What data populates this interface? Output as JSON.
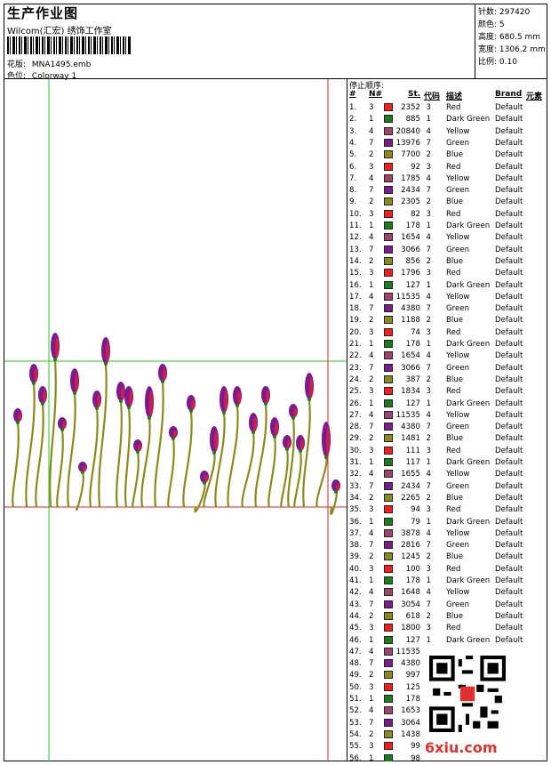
{
  "header": {
    "title": "生产作业图",
    "company": "Wilcom(汇宏) 绣饰工作室",
    "design_label": "花版:",
    "design_value": "MNA1495.emb",
    "colorway_label": "色位:",
    "colorway_value": "Colorway 1"
  },
  "stats": {
    "stitches": "针数: 297420",
    "colors": "颜色: 5",
    "height": "高度: 680.5 mm",
    "width": "宽度: 1306.2 mm",
    "scale": "比例: 0.10"
  },
  "panel": {
    "title": "停止顺序:",
    "col_index": "#",
    "col_n": "N#",
    "col_st": "St.",
    "col_code": "代码",
    "col_desc": "描述",
    "col_brand": "Brand",
    "col_elem": "元素"
  },
  "colors": {
    "1": "#1a7f1a",
    "2": "#8b8b1a",
    "3": "#ff1a1a",
    "4": "#a0446e",
    "7": "#7d1a8e"
  },
  "stops": [
    {
      "i": "1.",
      "n": "3",
      "st": "2352",
      "code": "3",
      "desc": "Red",
      "brand": "Default"
    },
    {
      "i": "2.",
      "n": "1",
      "st": "885",
      "code": "1",
      "desc": "Dark Green",
      "brand": "Default"
    },
    {
      "i": "3.",
      "n": "4",
      "st": "20840",
      "code": "4",
      "desc": "Yellow",
      "brand": "Default"
    },
    {
      "i": "4.",
      "n": "7",
      "st": "13976",
      "code": "7",
      "desc": "Green",
      "brand": "Default"
    },
    {
      "i": "5.",
      "n": "2",
      "st": "7700",
      "code": "2",
      "desc": "Blue",
      "brand": "Default"
    },
    {
      "i": "6.",
      "n": "3",
      "st": "92",
      "code": "3",
      "desc": "Red",
      "brand": "Default"
    },
    {
      "i": "7.",
      "n": "4",
      "st": "1785",
      "code": "4",
      "desc": "Yellow",
      "brand": "Default"
    },
    {
      "i": "8.",
      "n": "7",
      "st": "2434",
      "code": "7",
      "desc": "Green",
      "brand": "Default"
    },
    {
      "i": "9.",
      "n": "2",
      "st": "2305",
      "code": "2",
      "desc": "Blue",
      "brand": "Default"
    },
    {
      "i": "10.",
      "n": "3",
      "st": "82",
      "code": "3",
      "desc": "Red",
      "brand": "Default"
    },
    {
      "i": "11.",
      "n": "1",
      "st": "178",
      "code": "1",
      "desc": "Dark Green",
      "brand": "Default"
    },
    {
      "i": "12.",
      "n": "4",
      "st": "1654",
      "code": "4",
      "desc": "Yellow",
      "brand": "Default"
    },
    {
      "i": "13.",
      "n": "7",
      "st": "3066",
      "code": "7",
      "desc": "Green",
      "brand": "Default"
    },
    {
      "i": "14.",
      "n": "2",
      "st": "856",
      "code": "2",
      "desc": "Blue",
      "brand": "Default"
    },
    {
      "i": "15.",
      "n": "3",
      "st": "1796",
      "code": "3",
      "desc": "Red",
      "brand": "Default"
    },
    {
      "i": "16.",
      "n": "1",
      "st": "127",
      "code": "1",
      "desc": "Dark Green",
      "brand": "Default"
    },
    {
      "i": "17.",
      "n": "4",
      "st": "11535",
      "code": "4",
      "desc": "Yellow",
      "brand": "Default"
    },
    {
      "i": "18.",
      "n": "7",
      "st": "4380",
      "code": "7",
      "desc": "Green",
      "brand": "Default"
    },
    {
      "i": "19.",
      "n": "2",
      "st": "1188",
      "code": "2",
      "desc": "Blue",
      "brand": "Default"
    },
    {
      "i": "20.",
      "n": "3",
      "st": "74",
      "code": "3",
      "desc": "Red",
      "brand": "Default"
    },
    {
      "i": "21.",
      "n": "1",
      "st": "178",
      "code": "1",
      "desc": "Dark Green",
      "brand": "Default"
    },
    {
      "i": "22.",
      "n": "4",
      "st": "1654",
      "code": "4",
      "desc": "Yellow",
      "brand": "Default"
    },
    {
      "i": "23.",
      "n": "7",
      "st": "3066",
      "code": "7",
      "desc": "Green",
      "brand": "Default"
    },
    {
      "i": "24.",
      "n": "2",
      "st": "387",
      "code": "2",
      "desc": "Blue",
      "brand": "Default"
    },
    {
      "i": "25.",
      "n": "3",
      "st": "1834",
      "code": "3",
      "desc": "Red",
      "brand": "Default"
    },
    {
      "i": "26.",
      "n": "1",
      "st": "127",
      "code": "1",
      "desc": "Dark Green",
      "brand": "Default"
    },
    {
      "i": "27.",
      "n": "4",
      "st": "11535",
      "code": "4",
      "desc": "Yellow",
      "brand": "Default"
    },
    {
      "i": "28.",
      "n": "7",
      "st": "4380",
      "code": "7",
      "desc": "Green",
      "brand": "Default"
    },
    {
      "i": "29.",
      "n": "2",
      "st": "1481",
      "code": "2",
      "desc": "Blue",
      "brand": "Default"
    },
    {
      "i": "30.",
      "n": "3",
      "st": "111",
      "code": "3",
      "desc": "Red",
      "brand": "Default"
    },
    {
      "i": "31.",
      "n": "1",
      "st": "117",
      "code": "1",
      "desc": "Dark Green",
      "brand": "Default"
    },
    {
      "i": "32.",
      "n": "4",
      "st": "1655",
      "code": "4",
      "desc": "Yellow",
      "brand": "Default"
    },
    {
      "i": "33.",
      "n": "7",
      "st": "2434",
      "code": "7",
      "desc": "Green",
      "brand": "Default"
    },
    {
      "i": "34.",
      "n": "2",
      "st": "2265",
      "code": "2",
      "desc": "Blue",
      "brand": "Default"
    },
    {
      "i": "35.",
      "n": "3",
      "st": "94",
      "code": "3",
      "desc": "Red",
      "brand": "Default"
    },
    {
      "i": "36.",
      "n": "1",
      "st": "79",
      "code": "1",
      "desc": "Dark Green",
      "brand": "Default"
    },
    {
      "i": "37.",
      "n": "4",
      "st": "3878",
      "code": "4",
      "desc": "Yellow",
      "brand": "Default"
    },
    {
      "i": "38.",
      "n": "7",
      "st": "2816",
      "code": "7",
      "desc": "Green",
      "brand": "Default"
    },
    {
      "i": "39.",
      "n": "2",
      "st": "1245",
      "code": "2",
      "desc": "Blue",
      "brand": "Default"
    },
    {
      "i": "40.",
      "n": "3",
      "st": "100",
      "code": "3",
      "desc": "Red",
      "brand": "Default"
    },
    {
      "i": "41.",
      "n": "1",
      "st": "178",
      "code": "1",
      "desc": "Dark Green",
      "brand": "Default"
    },
    {
      "i": "42.",
      "n": "4",
      "st": "1648",
      "code": "4",
      "desc": "Yellow",
      "brand": "Default"
    },
    {
      "i": "43.",
      "n": "7",
      "st": "3054",
      "code": "7",
      "desc": "Green",
      "brand": "Default"
    },
    {
      "i": "44.",
      "n": "2",
      "st": "618",
      "code": "2",
      "desc": "Blue",
      "brand": "Default"
    },
    {
      "i": "45.",
      "n": "3",
      "st": "1800",
      "code": "3",
      "desc": "Red",
      "brand": "Default"
    },
    {
      "i": "46.",
      "n": "1",
      "st": "127",
      "code": "1",
      "desc": "Dark Green",
      "brand": "Default"
    },
    {
      "i": "47.",
      "n": "4",
      "st": "11535",
      "code": "",
      "desc": "",
      "brand": ""
    },
    {
      "i": "48.",
      "n": "7",
      "st": "4380",
      "code": "",
      "desc": "",
      "brand": ""
    },
    {
      "i": "49.",
      "n": "2",
      "st": "997",
      "code": "",
      "desc": "",
      "brand": ""
    },
    {
      "i": "50.",
      "n": "3",
      "st": "125",
      "code": "",
      "desc": "",
      "brand": ""
    },
    {
      "i": "51.",
      "n": "1",
      "st": "178",
      "code": "",
      "desc": "",
      "brand": ""
    },
    {
      "i": "52.",
      "n": "4",
      "st": "1653",
      "code": "",
      "desc": "",
      "brand": ""
    },
    {
      "i": "53.",
      "n": "7",
      "st": "3064",
      "code": "",
      "desc": "",
      "brand": ""
    },
    {
      "i": "54.",
      "n": "2",
      "st": "1438",
      "code": "",
      "desc": "",
      "brand": ""
    },
    {
      "i": "55.",
      "n": "3",
      "st": "99",
      "code": "",
      "desc": "",
      "brand": ""
    },
    {
      "i": "56.",
      "n": "1",
      "st": "98",
      "code": "",
      "desc": "",
      "brand": ""
    }
  ],
  "watermark": {
    "text": "6xiu.com",
    "icon": "qr-code-icon"
  }
}
